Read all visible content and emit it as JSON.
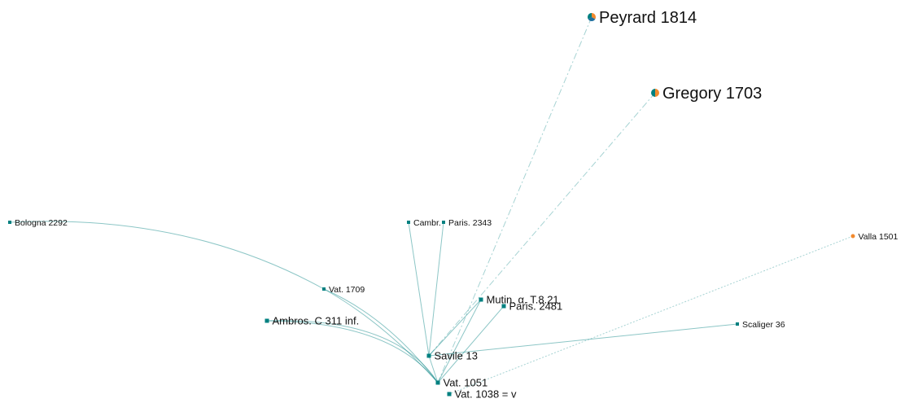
{
  "colors": {
    "primary": "#008080",
    "secondary": "#f28a2e",
    "tertiary": "#1f6f9f",
    "edge": "#008080"
  },
  "nodes": [
    {
      "id": "peyrard",
      "label": "Peyrard 1814",
      "kind": "pie",
      "slices": [
        "#f28a2e",
        "#1f6f9f",
        "#008080"
      ]
    },
    {
      "id": "gregory",
      "label": "Gregory 1703",
      "kind": "pie",
      "slices": [
        "#f28a2e",
        "#008080"
      ]
    },
    {
      "id": "bologna",
      "label": "Bologna 2292",
      "kind": "square"
    },
    {
      "id": "cambr",
      "label": "Cambr.",
      "kind": "square"
    },
    {
      "id": "paris2343",
      "label": "Paris. 2343",
      "kind": "square"
    },
    {
      "id": "valla",
      "label": "Valla 1501",
      "kind": "dot"
    },
    {
      "id": "vat1709",
      "label": "Vat. 1709",
      "kind": "square"
    },
    {
      "id": "mutin",
      "label": "Mutin. α. T.8.21",
      "kind": "square"
    },
    {
      "id": "paris2481",
      "label": "Paris. 2481",
      "kind": "square"
    },
    {
      "id": "ambros",
      "label": "Ambros. C 311 inf.",
      "kind": "square"
    },
    {
      "id": "scaliger",
      "label": "Scaliger 36",
      "kind": "square"
    },
    {
      "id": "savile",
      "label": "Savile 13",
      "kind": "square"
    },
    {
      "id": "vat1051",
      "label": "Vat. 1051",
      "kind": "square"
    },
    {
      "id": "vat1038",
      "label": "Vat. 1038 = v",
      "kind": "square"
    }
  ],
  "edges": [
    {
      "from": "bologna",
      "to": "vat1709",
      "style": "solid"
    },
    {
      "from": "vat1709",
      "to": "vat1051",
      "style": "solid"
    },
    {
      "from": "vat1709",
      "to": "vat1051",
      "style": "solid"
    },
    {
      "from": "ambros",
      "to": "vat1051",
      "style": "solid"
    },
    {
      "from": "ambros",
      "to": "vat1051",
      "style": "solid"
    },
    {
      "from": "cambr",
      "to": "savile",
      "style": "solid"
    },
    {
      "from": "paris2343",
      "to": "savile",
      "style": "solid"
    },
    {
      "from": "scaliger",
      "to": "savile",
      "style": "solid"
    },
    {
      "from": "mutin",
      "to": "savile",
      "style": "solid"
    },
    {
      "from": "mutin",
      "to": "vat1051",
      "style": "solid"
    },
    {
      "from": "paris2481",
      "to": "vat1051",
      "style": "solid"
    },
    {
      "from": "peyrard",
      "to": "vat1051",
      "style": "dashed"
    },
    {
      "from": "gregory",
      "to": "savile",
      "style": "dashed"
    },
    {
      "from": "valla",
      "to": "vat1038",
      "style": "dotted"
    },
    {
      "from": "savile",
      "to": "vat1051",
      "style": "solid"
    }
  ]
}
